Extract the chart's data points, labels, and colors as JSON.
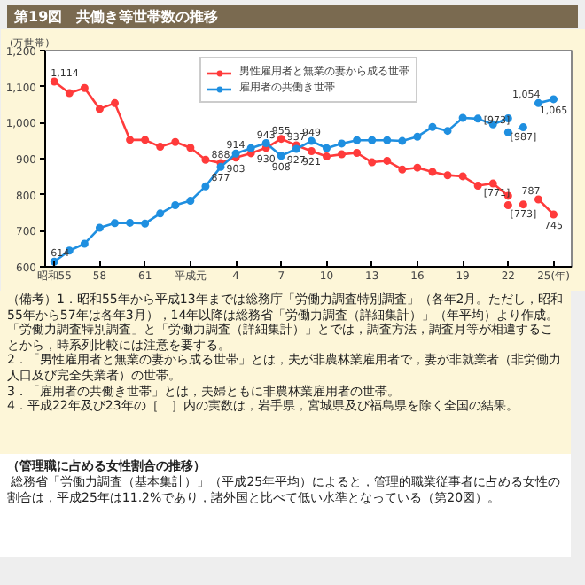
{
  "chart_data": {
    "type": "line",
    "title": "第19図　共働き等世帯数の推移",
    "ylabel": "(万世帯)",
    "marker": "circle",
    "legend": "top",
    "grid": false,
    "categories": [
      "昭和55",
      null,
      null,
      "58",
      null,
      null,
      "61",
      null,
      null,
      "平成元",
      null,
      null,
      "4",
      null,
      null,
      "7",
      null,
      null,
      "10",
      null,
      null,
      "13",
      null,
      null,
      "16",
      null,
      null,
      "19",
      null,
      null,
      "22",
      null,
      null,
      "25(年)"
    ],
    "ylim": [
      600,
      1200
    ],
    "yticks": [
      600,
      700,
      800,
      900,
      {
        "value": 1000,
        "label": "1,000"
      },
      {
        "value": 1100,
        "label": "1,100"
      },
      {
        "value": 1200,
        "label": "1,200"
      }
    ],
    "series": [
      {
        "name": "男性雇用者と無業の妻から成る世帯",
        "color": "#ff3b3b",
        "line_style": "solid",
        "values": [
          1114,
          1082,
          1096,
          1038,
          1054,
          952,
          952,
          933,
          946,
          930,
          897,
          888,
          903,
          915,
          930,
          955,
          937,
          921,
          906,
          912,
          916,
          890,
          894,
          870,
          875,
          863,
          854,
          851,
          825,
          831,
          797,
          null,
          null,
          null
        ],
        "value_labels": [
          "1,114",
          null,
          null,
          null,
          null,
          null,
          null,
          null,
          null,
          null,
          null,
          "888",
          "903",
          null,
          "930",
          "955",
          "937",
          "921",
          null,
          null,
          null,
          null,
          null,
          null,
          null,
          null,
          null,
          null,
          null,
          null,
          null,
          null,
          null,
          null
        ]
      },
      {
        "name": "雇用者の共働き世帯",
        "color": "#1f8fe0",
        "line_style": "solid",
        "values": [
          614,
          645,
          664,
          708,
          721,
          722,
          720,
          748,
          771,
          783,
          823,
          877,
          914,
          929,
          943,
          908,
          927,
          949,
          929,
          942,
          951,
          951,
          951,
          949,
          961,
          988,
          977,
          1013,
          1011,
          995,
          1012,
          null,
          null,
          null
        ],
        "value_labels": [
          "614",
          null,
          null,
          null,
          null,
          null,
          null,
          null,
          null,
          null,
          null,
          "877",
          "914",
          null,
          "943",
          "908",
          "927",
          "949",
          null,
          null,
          null,
          null,
          null,
          null,
          null,
          null,
          null,
          null,
          null,
          null,
          null,
          null,
          null,
          null
        ]
      },
      {
        "color": "#ff3b3b",
        "line_style": "dotted",
        "values": [
          null,
          null,
          null,
          null,
          null,
          null,
          null,
          null,
          null,
          null,
          null,
          null,
          null,
          null,
          null,
          null,
          null,
          null,
          null,
          null,
          null,
          null,
          null,
          null,
          null,
          null,
          null,
          null,
          null,
          null,
          771,
          773,
          null,
          null
        ],
        "value_labels": [
          null,
          null,
          null,
          null,
          null,
          null,
          null,
          null,
          null,
          null,
          null,
          null,
          null,
          null,
          null,
          null,
          null,
          null,
          null,
          null,
          null,
          null,
          null,
          null,
          null,
          null,
          null,
          null,
          null,
          null,
          "[771]",
          "[773]",
          null,
          null
        ]
      },
      {
        "color": "#1f8fe0",
        "line_style": "dotted",
        "values": [
          null,
          null,
          null,
          null,
          null,
          null,
          null,
          null,
          null,
          null,
          null,
          null,
          null,
          null,
          null,
          null,
          null,
          null,
          null,
          null,
          null,
          null,
          null,
          null,
          null,
          null,
          null,
          null,
          null,
          null,
          973,
          987,
          null,
          null
        ],
        "value_labels": [
          null,
          null,
          null,
          null,
          null,
          null,
          null,
          null,
          null,
          null,
          null,
          null,
          null,
          null,
          null,
          null,
          null,
          null,
          null,
          null,
          null,
          null,
          null,
          null,
          null,
          null,
          null,
          null,
          null,
          null,
          "[973]",
          "[987]",
          null,
          null
        ]
      },
      {
        "color": "#ff3b3b",
        "line_style": "solid",
        "values": [
          null,
          null,
          null,
          null,
          null,
          null,
          null,
          null,
          null,
          null,
          null,
          null,
          null,
          null,
          null,
          null,
          null,
          null,
          null,
          null,
          null,
          null,
          null,
          null,
          null,
          null,
          null,
          null,
          null,
          null,
          null,
          null,
          787,
          745
        ],
        "value_labels": [
          null,
          null,
          null,
          null,
          null,
          null,
          null,
          null,
          null,
          null,
          null,
          null,
          null,
          null,
          null,
          null,
          null,
          null,
          null,
          null,
          null,
          null,
          null,
          null,
          null,
          null,
          null,
          null,
          null,
          null,
          null,
          null,
          "787",
          "745"
        ]
      },
      {
        "color": "#1f8fe0",
        "line_style": "solid",
        "values": [
          null,
          null,
          null,
          null,
          null,
          null,
          null,
          null,
          null,
          null,
          null,
          null,
          null,
          null,
          null,
          null,
          null,
          null,
          null,
          null,
          null,
          null,
          null,
          null,
          null,
          null,
          null,
          null,
          null,
          null,
          null,
          null,
          1054,
          1065
        ],
        "value_labels": [
          null,
          null,
          null,
          null,
          null,
          null,
          null,
          null,
          null,
          null,
          null,
          null,
          null,
          null,
          null,
          null,
          null,
          null,
          null,
          null,
          null,
          null,
          null,
          null,
          null,
          null,
          null,
          null,
          null,
          null,
          null,
          null,
          "1,054",
          "1,065"
        ]
      }
    ],
    "annotations": [
      "（備考）1．昭和55年から平成13年までは総務庁「労働力調査特別調査」（各年2月。ただし，昭和55年から57年は各年3月），14年以降は総務省「労働力調査（詳細集計）」（年平均）より作成。「労働力調査特別調査」と「労働力調査（詳細集計）」とでは，調査方法，調査月等が相違することから，時系列比較には注意を要する。",
      "2．「男性雇用者と無業の妻から成る世帯」とは，夫が非農林業雇用者で，妻が非就業者（非労働力人口及び完全失業者）の世帯。",
      "3．「雇用者の共働き世帯」とは，夫婦ともに非農林業雇用者の世帯。",
      "4．平成22年及び23年の［　］内の実数は，岩手県，宮城県及び福島県を除く全国の結果。",
      "（管理職に占める女性割合の推移）",
      "総務省「労働力調査（基本集計）」（平成25年平均）によると，管理的職業従事者に占める女性の割合は，平成25年は11.2%であり，諸外国と比べて低い水準となっている（第20図）。"
    ]
  }
}
